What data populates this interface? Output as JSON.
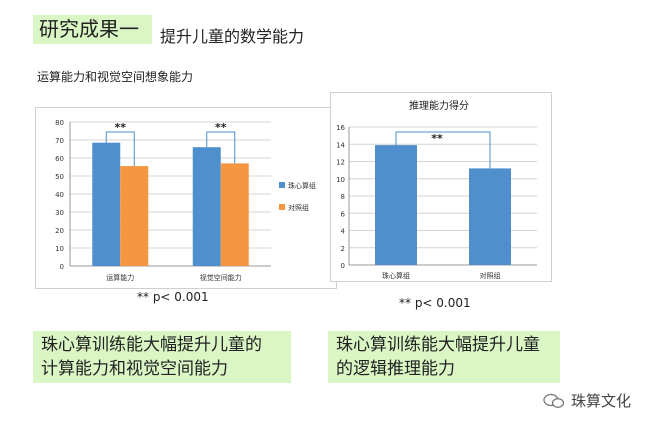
{
  "header": {
    "title": "研究成果一",
    "subtitle": "提升儿童的数学能力"
  },
  "left_section_label": "运算能力和视觉空间想象能力",
  "chart_data": [
    {
      "type": "bar",
      "title": "",
      "categories": [
        "运算能力",
        "视觉空间能力"
      ],
      "series": [
        {
          "name": "珠心算组",
          "color": "#4f8fcd",
          "values": [
            68.5,
            66
          ]
        },
        {
          "name": "对照组",
          "color": "#f59640",
          "values": [
            55.5,
            57
          ]
        }
      ],
      "ylim": [
        0,
        80
      ],
      "yticks": [
        0,
        10,
        20,
        30,
        40,
        50,
        60,
        70,
        80
      ],
      "grid": true,
      "legend": "right",
      "annotations": [
        "**",
        "**"
      ]
    },
    {
      "type": "bar",
      "title": "推理能力得分",
      "categories": [
        "珠心算组",
        "对照组"
      ],
      "series": [
        {
          "values": [
            13.9,
            11.2
          ],
          "color": "#4f8fcd"
        }
      ],
      "ylim": [
        0,
        16
      ],
      "yticks": [
        0,
        2,
        4,
        6,
        8,
        10,
        12,
        14,
        16
      ],
      "grid": true,
      "annotations": [
        "**"
      ]
    }
  ],
  "sig_note_left": "** p< 0.001",
  "sig_note_right": "** p< 0.001",
  "conclusions": {
    "left": [
      "珠心算训练能大幅提升儿童的",
      "计算能力和视觉空间能力"
    ],
    "right": [
      "珠心算训练能大幅提升儿童",
      "的逻辑推理能力"
    ]
  },
  "watermark": "珠算文化"
}
